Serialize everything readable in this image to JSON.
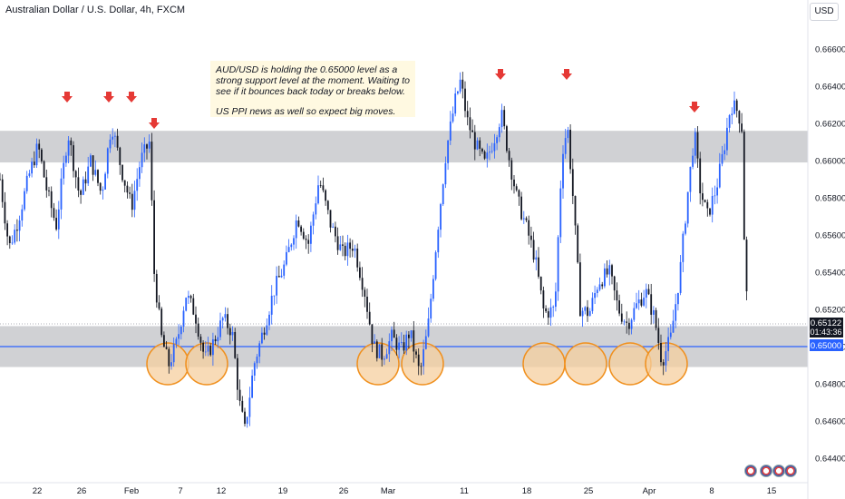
{
  "header": {
    "title": "Australian Dollar / U.S. Dollar, 4h, FXCM",
    "currency_button": "USD"
  },
  "annotation": {
    "line1": "AUD/USD is holding the 0.65000 level as a strong support level at the moment. Waiting to see if it bounces back today or breaks below.",
    "line2": "US PPI news as well so expect big moves."
  },
  "price_labels": {
    "last": "0.65122",
    "countdown": "01:43:36",
    "level": "0.65000"
  },
  "colors": {
    "up": "#2962ff",
    "down": "#131722",
    "zone": "#c8c9cc",
    "level_line": "#2962ff",
    "circle_fill": "#f5cf9f",
    "circle_stroke": "#f0901e",
    "arrow": "#e53935",
    "note_bg": "#fff9e1",
    "last_label": "#131722",
    "level_label": "#2962ff"
  },
  "icons": [
    "us-flag-icon",
    "us-flag-icon",
    "us-flag-icon",
    "us-flag-icon"
  ],
  "chart_data": {
    "type": "candlestick",
    "title": "Australian Dollar / U.S. Dollar, 4h, FXCM",
    "x_ticks": [
      "22",
      "26",
      "Feb",
      "7",
      "12",
      "19",
      "26",
      "Mar",
      "11",
      "18",
      "25",
      "Apr",
      "8",
      "15"
    ],
    "y_ticks": [
      "0.66600",
      "0.66400",
      "0.66200",
      "0.66000",
      "0.65800",
      "0.65600",
      "0.65400",
      "0.65200",
      "0.65000",
      "0.64800",
      "0.64600",
      "0.64400"
    ],
    "ylim": [
      0.6432,
      0.6674
    ],
    "resistance_zone": [
      0.6599,
      0.6616
    ],
    "support_zone": [
      0.6489,
      0.6511
    ],
    "level_line": 0.65,
    "last_price": 0.65122,
    "arrow_marks_x": [
      74,
      120,
      145,
      170,
      552,
      625,
      766
    ],
    "support_touch_circles_x": [
      185,
      228,
      417,
      466,
      600,
      646,
      695,
      735
    ],
    "price_path": [
      {
        "x": 0,
        "p": 0.659
      },
      {
        "x": 10,
        "p": 0.6553
      },
      {
        "x": 20,
        "p": 0.6568
      },
      {
        "x": 32,
        "p": 0.6592
      },
      {
        "x": 42,
        "p": 0.6608
      },
      {
        "x": 52,
        "p": 0.6583
      },
      {
        "x": 62,
        "p": 0.6565
      },
      {
        "x": 75,
        "p": 0.6615
      },
      {
        "x": 88,
        "p": 0.658
      },
      {
        "x": 100,
        "p": 0.66
      },
      {
        "x": 112,
        "p": 0.6582
      },
      {
        "x": 123,
        "p": 0.662
      },
      {
        "x": 134,
        "p": 0.6595
      },
      {
        "x": 145,
        "p": 0.6575
      },
      {
        "x": 155,
        "p": 0.66
      },
      {
        "x": 165,
        "p": 0.661
      },
      {
        "x": 170,
        "p": 0.654
      },
      {
        "x": 178,
        "p": 0.6505
      },
      {
        "x": 186,
        "p": 0.649
      },
      {
        "x": 195,
        "p": 0.6502
      },
      {
        "x": 205,
        "p": 0.6528
      },
      {
        "x": 215,
        "p": 0.6518
      },
      {
        "x": 226,
        "p": 0.6493
      },
      {
        "x": 236,
        "p": 0.6503
      },
      {
        "x": 246,
        "p": 0.6515
      },
      {
        "x": 256,
        "p": 0.6508
      },
      {
        "x": 264,
        "p": 0.647
      },
      {
        "x": 270,
        "p": 0.6455
      },
      {
        "x": 280,
        "p": 0.649
      },
      {
        "x": 290,
        "p": 0.6508
      },
      {
        "x": 302,
        "p": 0.653
      },
      {
        "x": 315,
        "p": 0.6545
      },
      {
        "x": 328,
        "p": 0.657
      },
      {
        "x": 340,
        "p": 0.6555
      },
      {
        "x": 352,
        "p": 0.659
      },
      {
        "x": 365,
        "p": 0.6565
      },
      {
        "x": 378,
        "p": 0.655
      },
      {
        "x": 390,
        "p": 0.6555
      },
      {
        "x": 402,
        "p": 0.653
      },
      {
        "x": 412,
        "p": 0.65
      },
      {
        "x": 422,
        "p": 0.6495
      },
      {
        "x": 432,
        "p": 0.6505
      },
      {
        "x": 443,
        "p": 0.6498
      },
      {
        "x": 452,
        "p": 0.6508
      },
      {
        "x": 463,
        "p": 0.6485
      },
      {
        "x": 472,
        "p": 0.651
      },
      {
        "x": 482,
        "p": 0.656
      },
      {
        "x": 492,
        "p": 0.6605
      },
      {
        "x": 502,
        "p": 0.6632
      },
      {
        "x": 508,
        "p": 0.6643
      },
      {
        "x": 515,
        "p": 0.6622
      },
      {
        "x": 525,
        "p": 0.6608
      },
      {
        "x": 535,
        "p": 0.6598
      },
      {
        "x": 545,
        "p": 0.6612
      },
      {
        "x": 553,
        "p": 0.6625
      },
      {
        "x": 562,
        "p": 0.66
      },
      {
        "x": 570,
        "p": 0.658
      },
      {
        "x": 580,
        "p": 0.6565
      },
      {
        "x": 590,
        "p": 0.6548
      },
      {
        "x": 600,
        "p": 0.6518
      },
      {
        "x": 612,
        "p": 0.652
      },
      {
        "x": 620,
        "p": 0.6605
      },
      {
        "x": 626,
        "p": 0.6618
      },
      {
        "x": 632,
        "p": 0.658
      },
      {
        "x": 640,
        "p": 0.652
      },
      {
        "x": 650,
        "p": 0.6518
      },
      {
        "x": 660,
        "p": 0.6535
      },
      {
        "x": 672,
        "p": 0.654
      },
      {
        "x": 682,
        "p": 0.652
      },
      {
        "x": 692,
        "p": 0.6512
      },
      {
        "x": 702,
        "p": 0.6522
      },
      {
        "x": 712,
        "p": 0.653
      },
      {
        "x": 722,
        "p": 0.6515
      },
      {
        "x": 730,
        "p": 0.6492
      },
      {
        "x": 740,
        "p": 0.6505
      },
      {
        "x": 750,
        "p": 0.654
      },
      {
        "x": 758,
        "p": 0.658
      },
      {
        "x": 766,
        "p": 0.6615
      },
      {
        "x": 772,
        "p": 0.6585
      },
      {
        "x": 780,
        "p": 0.657
      },
      {
        "x": 790,
        "p": 0.6585
      },
      {
        "x": 798,
        "p": 0.6605
      },
      {
        "x": 806,
        "p": 0.663
      },
      {
        "x": 812,
        "p": 0.6628
      },
      {
        "x": 818,
        "p": 0.662
      },
      {
        "x": 821,
        "p": 0.6555
      },
      {
        "x": 825,
        "p": 0.6512
      }
    ]
  }
}
